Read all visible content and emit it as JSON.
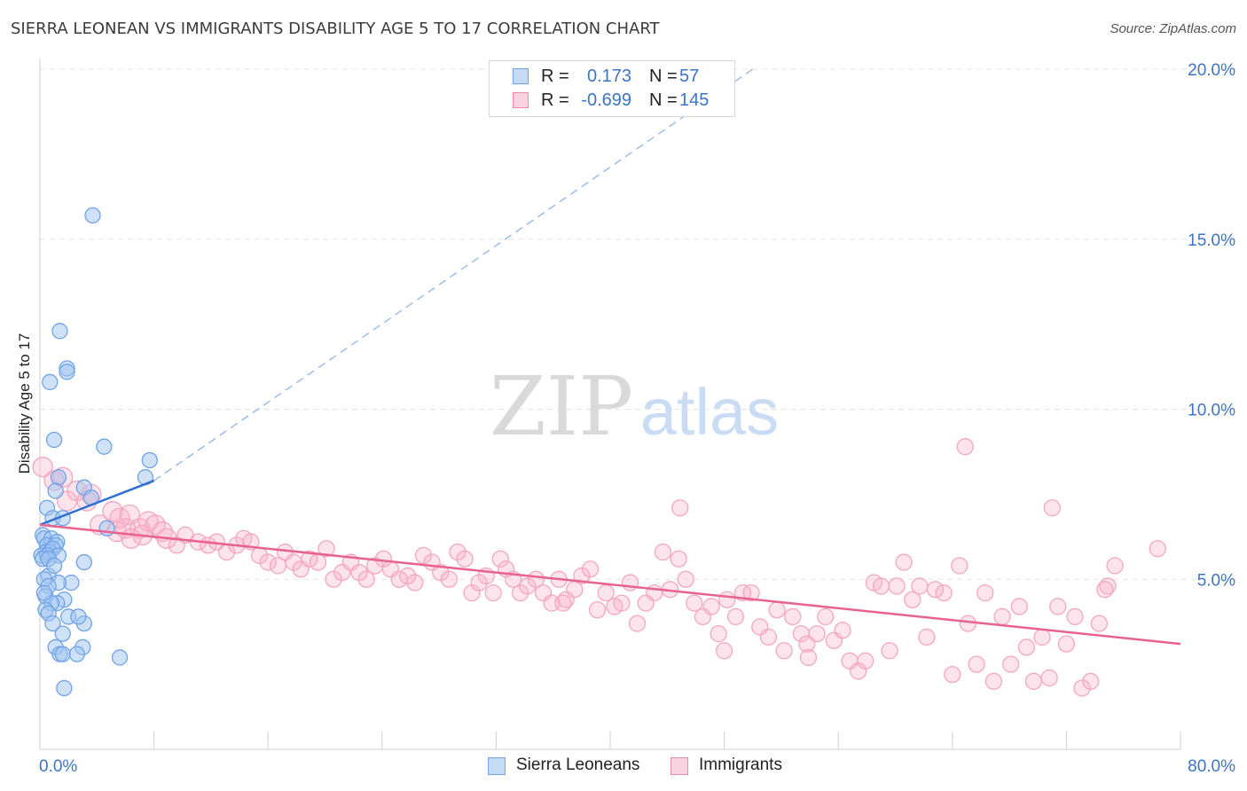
{
  "header": {
    "title": "SIERRA LEONEAN VS IMMIGRANTS DISABILITY AGE 5 TO 17 CORRELATION CHART",
    "source": "Source: ZipAtlas.com"
  },
  "watermark": {
    "zip": "ZIP",
    "atlas": "atlas"
  },
  "legend_top": [
    {
      "r_label": "R =",
      "r_value": "0.173",
      "n_label": "N =",
      "n_value": "57",
      "color": "#6fa3e6"
    },
    {
      "r_label": "R =",
      "r_value": "-0.699",
      "n_label": "N =",
      "n_value": "145",
      "color": "#f08aaa"
    }
  ],
  "legend_bottom": [
    {
      "label": "Sierra Leoneans",
      "color": "#6fa3e6"
    },
    {
      "label": "Immigrants",
      "color": "#f08aaa"
    }
  ],
  "colors": {
    "blue": "#6fa3e6",
    "blue_line": "#2f6fcf",
    "pink": "#f08aaa",
    "pink_line": "#e8628f",
    "axis_text": "#3d74c5",
    "grid": "#e3e3e3"
  },
  "chart_data": {
    "type": "scatter",
    "title": "SIERRA LEONEAN VS IMMIGRANTS DISABILITY AGE 5 TO 17 CORRELATION CHART",
    "xlabel": "",
    "ylabel": "Disability Age 5 to 17",
    "xlim": [
      0,
      80
    ],
    "ylim": [
      0,
      20
    ],
    "x_tick_labels": [
      "0.0%",
      "80.0%"
    ],
    "y_tick_labels": [
      "5.0%",
      "10.0%",
      "15.0%",
      "20.0%"
    ],
    "y_ticks": [
      5,
      10,
      15,
      20
    ],
    "grid": true,
    "legend_placement": "top-center",
    "series": [
      {
        "name": "Sierra Leoneans",
        "r": 0.173,
        "n": 57,
        "trend": {
          "x": [
            0,
            8
          ],
          "y": [
            6.6,
            7.9
          ],
          "extended_to": [
            50,
            20
          ]
        },
        "points": [
          [
            3.7,
            15.7
          ],
          [
            1.4,
            12.3
          ],
          [
            0.7,
            10.8
          ],
          [
            1.9,
            11.2
          ],
          [
            1.9,
            11.1
          ],
          [
            1.0,
            9.1
          ],
          [
            4.5,
            8.9
          ],
          [
            7.7,
            8.5
          ],
          [
            1.3,
            8.0
          ],
          [
            7.4,
            8.0
          ],
          [
            1.1,
            7.6
          ],
          [
            3.1,
            7.7
          ],
          [
            3.6,
            7.4
          ],
          [
            0.5,
            7.1
          ],
          [
            0.9,
            6.8
          ],
          [
            1.6,
            6.8
          ],
          [
            4.7,
            6.5
          ],
          [
            0.2,
            6.3
          ],
          [
            0.3,
            6.2
          ],
          [
            0.8,
            6.2
          ],
          [
            1.2,
            6.1
          ],
          [
            0.5,
            6.0
          ],
          [
            1.1,
            6.0
          ],
          [
            0.4,
            5.8
          ],
          [
            0.7,
            5.8
          ],
          [
            0.9,
            5.9
          ],
          [
            1.3,
            5.7
          ],
          [
            0.1,
            5.7
          ],
          [
            0.5,
            5.7
          ],
          [
            0.2,
            5.6
          ],
          [
            0.6,
            5.6
          ],
          [
            3.1,
            5.5
          ],
          [
            0.6,
            5.1
          ],
          [
            0.3,
            5.0
          ],
          [
            2.2,
            4.9
          ],
          [
            1.3,
            4.9
          ],
          [
            0.6,
            4.8
          ],
          [
            0.4,
            4.5
          ],
          [
            1.7,
            4.4
          ],
          [
            1.2,
            4.3
          ],
          [
            0.8,
            4.3
          ],
          [
            0.4,
            4.1
          ],
          [
            0.6,
            4.0
          ],
          [
            2.0,
            3.9
          ],
          [
            0.9,
            3.7
          ],
          [
            3.1,
            3.7
          ],
          [
            1.6,
            3.4
          ],
          [
            1.1,
            3.0
          ],
          [
            3.0,
            3.0
          ],
          [
            1.4,
            2.8
          ],
          [
            1.6,
            2.8
          ],
          [
            2.6,
            2.8
          ],
          [
            5.6,
            2.7
          ],
          [
            1.7,
            1.8
          ],
          [
            2.7,
            3.9
          ],
          [
            0.3,
            4.6
          ],
          [
            1.0,
            5.4
          ]
        ]
      },
      {
        "name": "Immigrants",
        "r": -0.699,
        "n": 145,
        "trend": {
          "x": [
            0,
            80
          ],
          "y": [
            6.6,
            3.1
          ]
        },
        "points": [
          [
            0.2,
            8.3
          ],
          [
            1.0,
            7.9
          ],
          [
            1.6,
            8.0
          ],
          [
            1.9,
            7.3
          ],
          [
            2.6,
            7.6
          ],
          [
            3.3,
            7.3
          ],
          [
            3.6,
            7.5
          ],
          [
            5.1,
            7.0
          ],
          [
            4.2,
            6.6
          ],
          [
            5.6,
            6.8
          ],
          [
            6.0,
            6.5
          ],
          [
            6.3,
            6.9
          ],
          [
            7.0,
            6.5
          ],
          [
            7.6,
            6.7
          ],
          [
            8.1,
            6.6
          ],
          [
            8.6,
            6.4
          ],
          [
            5.4,
            6.4
          ],
          [
            6.4,
            6.2
          ],
          [
            7.2,
            6.3
          ],
          [
            8.9,
            6.2
          ],
          [
            9.6,
            6.0
          ],
          [
            10.2,
            6.3
          ],
          [
            11.1,
            6.1
          ],
          [
            11.8,
            6.0
          ],
          [
            12.4,
            6.1
          ],
          [
            13.1,
            5.8
          ],
          [
            13.8,
            6.0
          ],
          [
            14.3,
            6.2
          ],
          [
            14.8,
            6.1
          ],
          [
            15.4,
            5.7
          ],
          [
            16.0,
            5.5
          ],
          [
            16.7,
            5.4
          ],
          [
            17.2,
            5.8
          ],
          [
            17.8,
            5.5
          ],
          [
            18.3,
            5.3
          ],
          [
            18.9,
            5.6
          ],
          [
            19.5,
            5.5
          ],
          [
            20.1,
            5.9
          ],
          [
            20.6,
            5.0
          ],
          [
            21.2,
            5.2
          ],
          [
            21.8,
            5.5
          ],
          [
            22.4,
            5.2
          ],
          [
            22.9,
            5.0
          ],
          [
            23.5,
            5.4
          ],
          [
            24.1,
            5.6
          ],
          [
            24.6,
            5.3
          ],
          [
            25.2,
            5.0
          ],
          [
            25.8,
            5.1
          ],
          [
            26.3,
            4.9
          ],
          [
            26.9,
            5.7
          ],
          [
            27.5,
            5.5
          ],
          [
            28.1,
            5.2
          ],
          [
            28.7,
            5.0
          ],
          [
            29.3,
            5.8
          ],
          [
            29.8,
            5.6
          ],
          [
            30.3,
            4.6
          ],
          [
            30.8,
            4.9
          ],
          [
            31.3,
            5.1
          ],
          [
            31.8,
            4.6
          ],
          [
            32.3,
            5.6
          ],
          [
            32.7,
            5.3
          ],
          [
            33.2,
            5.0
          ],
          [
            33.7,
            4.6
          ],
          [
            34.2,
            4.8
          ],
          [
            34.8,
            5.0
          ],
          [
            35.3,
            4.6
          ],
          [
            35.9,
            4.3
          ],
          [
            36.4,
            5.0
          ],
          [
            36.9,
            4.4
          ],
          [
            37.5,
            4.7
          ],
          [
            38.0,
            5.1
          ],
          [
            38.6,
            5.3
          ],
          [
            39.1,
            4.1
          ],
          [
            39.7,
            4.6
          ],
          [
            40.3,
            4.2
          ],
          [
            40.8,
            4.3
          ],
          [
            41.4,
            4.9
          ],
          [
            41.9,
            3.7
          ],
          [
            42.5,
            4.3
          ],
          [
            43.1,
            4.6
          ],
          [
            43.7,
            5.8
          ],
          [
            44.2,
            4.7
          ],
          [
            44.8,
            5.6
          ],
          [
            45.3,
            5.0
          ],
          [
            45.9,
            4.3
          ],
          [
            46.5,
            3.9
          ],
          [
            47.1,
            4.2
          ],
          [
            47.6,
            3.4
          ],
          [
            48.2,
            4.4
          ],
          [
            48.8,
            3.9
          ],
          [
            49.3,
            4.6
          ],
          [
            49.9,
            4.6
          ],
          [
            50.5,
            3.6
          ],
          [
            51.1,
            3.3
          ],
          [
            51.7,
            4.1
          ],
          [
            52.2,
            2.9
          ],
          [
            52.8,
            3.9
          ],
          [
            53.4,
            3.4
          ],
          [
            53.9,
            2.7
          ],
          [
            54.5,
            3.4
          ],
          [
            55.1,
            3.9
          ],
          [
            55.7,
            3.2
          ],
          [
            56.3,
            3.5
          ],
          [
            56.8,
            2.6
          ],
          [
            57.4,
            2.3
          ],
          [
            57.9,
            2.6
          ],
          [
            58.5,
            4.9
          ],
          [
            59.0,
            4.8
          ],
          [
            59.6,
            2.9
          ],
          [
            60.1,
            4.8
          ],
          [
            60.6,
            5.5
          ],
          [
            61.2,
            4.4
          ],
          [
            61.7,
            4.8
          ],
          [
            62.2,
            3.3
          ],
          [
            62.8,
            4.7
          ],
          [
            63.4,
            4.6
          ],
          [
            64.0,
            2.2
          ],
          [
            64.5,
            5.4
          ],
          [
            65.1,
            3.7
          ],
          [
            65.7,
            2.5
          ],
          [
            66.3,
            4.6
          ],
          [
            66.9,
            2.0
          ],
          [
            67.5,
            3.9
          ],
          [
            68.1,
            2.5
          ],
          [
            68.7,
            4.2
          ],
          [
            69.2,
            3.0
          ],
          [
            69.7,
            2.0
          ],
          [
            70.3,
            3.3
          ],
          [
            70.8,
            2.1
          ],
          [
            71.4,
            4.2
          ],
          [
            72.0,
            3.1
          ],
          [
            72.6,
            3.9
          ],
          [
            73.1,
            1.8
          ],
          [
            73.7,
            2.0
          ],
          [
            74.3,
            3.7
          ],
          [
            74.9,
            4.8
          ],
          [
            75.4,
            5.4
          ],
          [
            53.8,
            3.1
          ],
          [
            48.0,
            2.9
          ],
          [
            44.9,
            7.1
          ],
          [
            64.9,
            8.9
          ],
          [
            71.0,
            7.1
          ],
          [
            78.4,
            5.9
          ],
          [
            74.7,
            4.7
          ],
          [
            36.7,
            4.3
          ]
        ]
      }
    ]
  }
}
